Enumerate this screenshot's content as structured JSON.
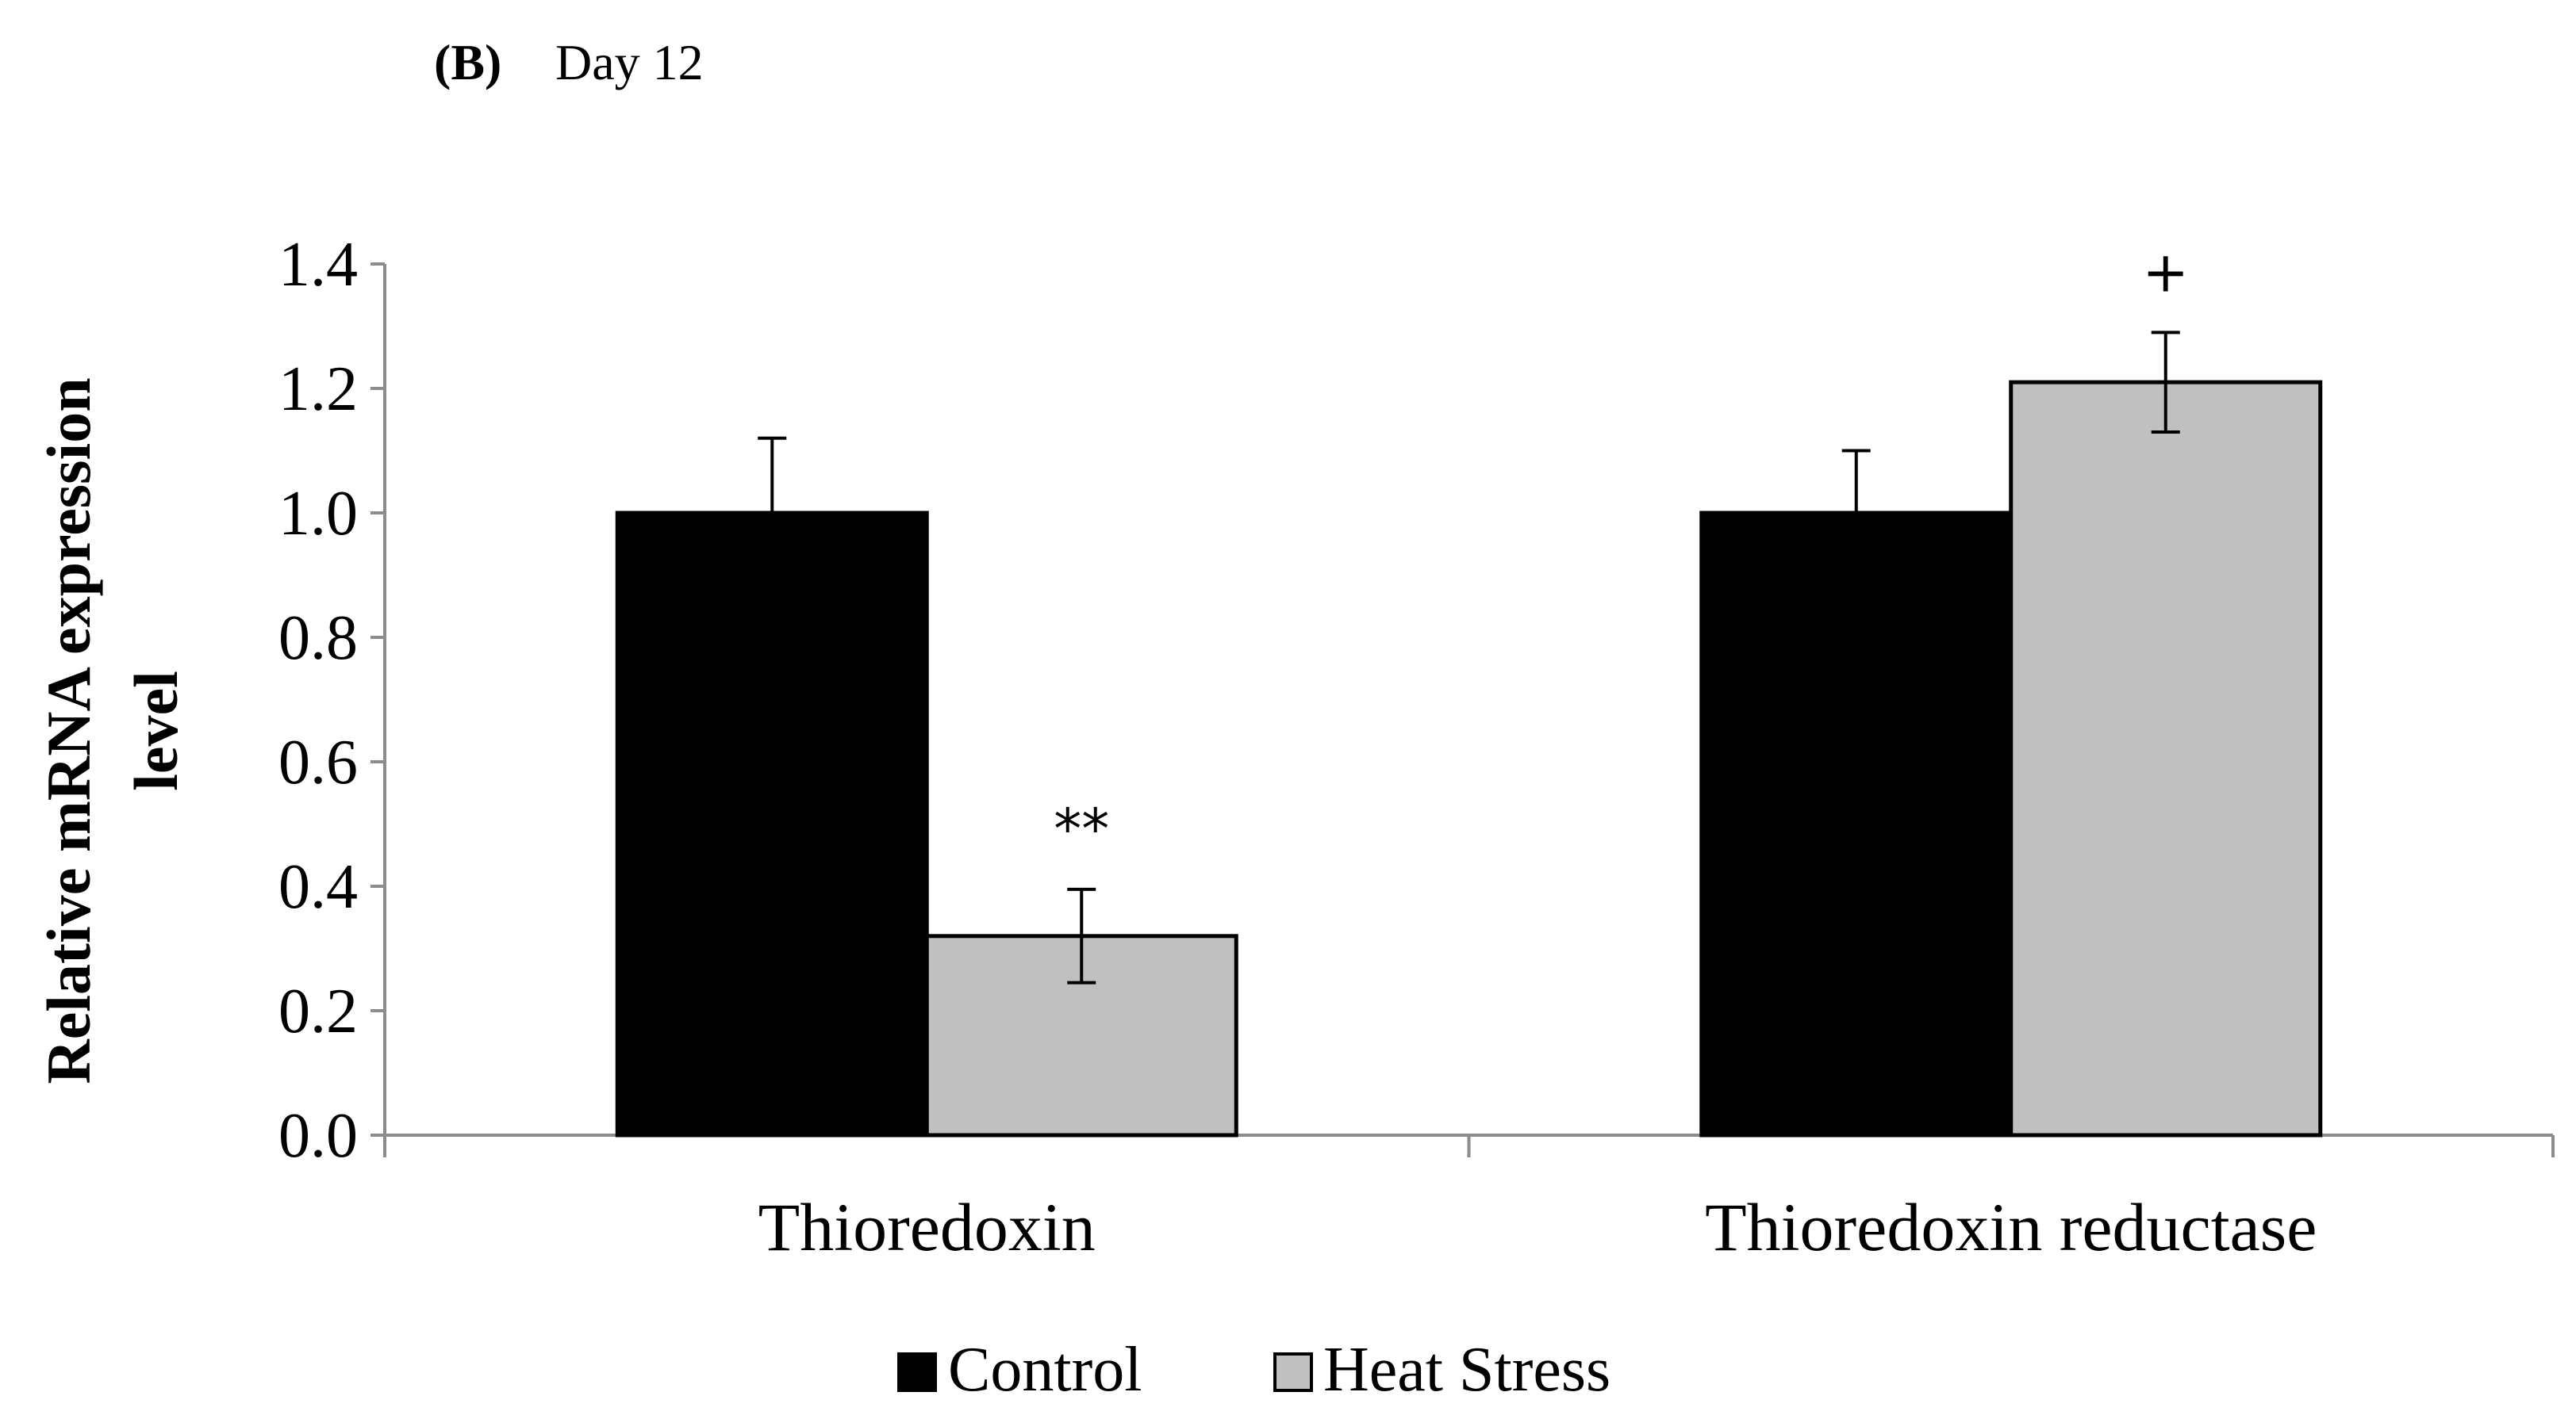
{
  "figure": {
    "panel_label": "(B)",
    "panel_title": "Day 12"
  },
  "chart_data": {
    "type": "bar",
    "title": "Day 12",
    "panel": "(B)",
    "xlabel": "",
    "ylabel": "Relative mRNA expression level",
    "ylabel_lines": [
      "Relative mRNA expression",
      "level"
    ],
    "ylim": [
      0.0,
      1.4
    ],
    "yticks": [
      0.0,
      0.2,
      0.4,
      0.6,
      0.8,
      1.0,
      1.2,
      1.4
    ],
    "ytick_labels": [
      "0.0",
      "0.2",
      "0.4",
      "0.6",
      "0.8",
      "1.0",
      "1.2",
      "1.4"
    ],
    "categories": [
      "Thioredoxin",
      "Thioredoxin reductase"
    ],
    "series": [
      {
        "name": "Control",
        "color": "#000000",
        "values": [
          1.0,
          1.0
        ],
        "errors": [
          0.12,
          0.1
        ],
        "annotations": [
          "",
          ""
        ]
      },
      {
        "name": "Heat Stress",
        "color": "#c0c0c0",
        "values": [
          0.32,
          1.21
        ],
        "errors": [
          0.075,
          0.08
        ],
        "annotations": [
          "**",
          "+"
        ]
      }
    ],
    "grid": false,
    "legend_position": "bottom-center"
  }
}
